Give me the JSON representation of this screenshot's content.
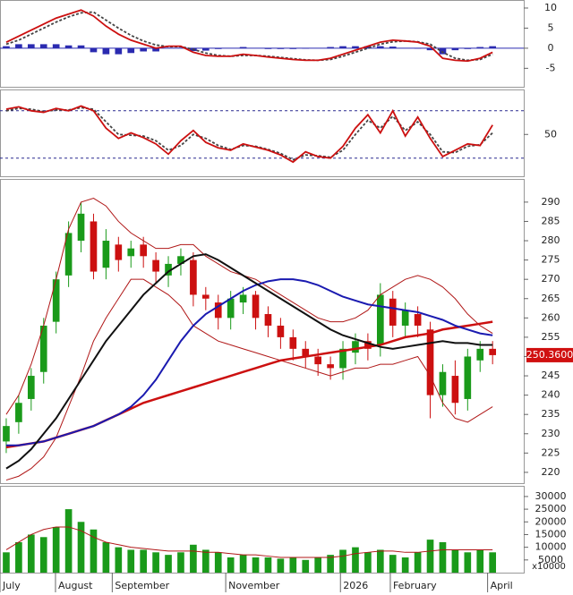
{
  "chart_data": [
    {
      "type": "line",
      "ylim": [
        -9.6,
        12
      ],
      "yticks": [
        10,
        5,
        0,
        -5
      ],
      "xlim": [
        0,
        42
      ],
      "zero_line": true,
      "series": [
        {
          "kind": "bar",
          "color": "#2a2ab0",
          "values": [
            0.5,
            1,
            1,
            1,
            1,
            0.7,
            0.7,
            -1,
            -1.5,
            -1.5,
            -1.2,
            -0.8,
            -0.8,
            0.1,
            0.1,
            -0.7,
            -0.6,
            -0.2,
            0,
            0.3,
            0,
            -0.2,
            -0.2,
            -0.2,
            -0.1,
            0,
            0.3,
            0.5,
            0.5,
            0.5,
            0.5,
            0.4,
            0,
            -0.1,
            -0.5,
            -1.5,
            -0.5,
            -0.2,
            0.3,
            0.5
          ]
        },
        {
          "kind": "line",
          "dash": true,
          "color": "#444",
          "values": [
            1,
            2,
            3.5,
            5,
            6.5,
            7.8,
            8.8,
            9,
            7,
            5,
            3.2,
            1.8,
            0.8,
            0.4,
            0.4,
            -0.3,
            -1.2,
            -1.8,
            -2,
            -1.8,
            -1.8,
            -2,
            -2.3,
            -2.6,
            -2.9,
            -3,
            -2.8,
            -2,
            -1,
            0,
            1,
            1.6,
            1.8,
            1.6,
            1,
            -1,
            -2.5,
            -3,
            -2.8,
            -1.5
          ]
        },
        {
          "kind": "line",
          "color": "#cc1010",
          "values": [
            1.5,
            3,
            4.5,
            6,
            7.5,
            8.5,
            9.5,
            8,
            5.5,
            3.5,
            2,
            1,
            0,
            0.5,
            0.5,
            -1,
            -1.8,
            -2,
            -2,
            -1.5,
            -1.8,
            -2.2,
            -2.5,
            -2.8,
            -3,
            -3,
            -2.5,
            -1.5,
            -0.5,
            0.5,
            1.5,
            2,
            1.8,
            1.5,
            0.5,
            -2.5,
            -3,
            -3.2,
            -2.5,
            -1
          ]
        }
      ]
    },
    {
      "type": "line",
      "ylim": [
        -3,
        107
      ],
      "yticks": [
        50
      ],
      "xlim": [
        0,
        42
      ],
      "levels": [
        80,
        20
      ],
      "series": [
        {
          "kind": "line",
          "dash": true,
          "color": "#444",
          "values": [
            80,
            83,
            82,
            79,
            81,
            81,
            84,
            82,
            66,
            50,
            49,
            48,
            42,
            30,
            36,
            50,
            45,
            36,
            31,
            36,
            35,
            31,
            26,
            18,
            24,
            23,
            21,
            30,
            50,
            68,
            58,
            73,
            55,
            66,
            50,
            28,
            27,
            35,
            37,
            52
          ]
        },
        {
          "kind": "line",
          "color": "#cc1010",
          "values": [
            82,
            85,
            80,
            78,
            83,
            80,
            86,
            80,
            58,
            45,
            52,
            46,
            38,
            25,
            42,
            55,
            40,
            33,
            30,
            38,
            34,
            30,
            24,
            15,
            28,
            22,
            20,
            35,
            58,
            75,
            52,
            80,
            48,
            72,
            45,
            22,
            30,
            38,
            36,
            62
          ]
        }
      ]
    },
    {
      "type": "candlestick",
      "ylim": [
        217.2,
        296
      ],
      "yticks": [
        220,
        225,
        230,
        235,
        240,
        245,
        250,
        255,
        260,
        265,
        270,
        275,
        280,
        285,
        290
      ],
      "xlim": [
        0,
        42
      ],
      "up_color": "#1a9a1a",
      "down_color": "#cc1010",
      "open": [
        228,
        233,
        239,
        246,
        259,
        271,
        280,
        285,
        273,
        279,
        276,
        279,
        275,
        271,
        274,
        275,
        266,
        264,
        260,
        264,
        266,
        261,
        258,
        255,
        252,
        250,
        248,
        247,
        251,
        254,
        253,
        265,
        258,
        261,
        257,
        240,
        245,
        239,
        249,
        252
      ],
      "high": [
        234,
        240,
        247,
        260,
        272,
        285,
        290,
        287,
        283,
        281,
        280,
        281,
        277,
        276,
        278,
        277,
        268,
        266,
        267,
        268,
        267,
        263,
        260,
        257,
        254,
        252,
        250,
        254,
        256,
        256,
        269,
        267,
        264,
        263,
        259,
        248,
        249,
        252,
        254,
        254
      ],
      "low": [
        225,
        230,
        236,
        243,
        256,
        268,
        277,
        270,
        270,
        272,
        273,
        273,
        269,
        268,
        271,
        263,
        262,
        257,
        257,
        261,
        257,
        255,
        252,
        249,
        247,
        245,
        244,
        244,
        248,
        249,
        250,
        255,
        255,
        255,
        234,
        237,
        235,
        236,
        246,
        248
      ],
      "close": [
        232,
        238,
        245,
        258,
        270,
        282,
        287,
        272,
        280,
        275,
        278,
        276,
        272,
        274,
        276,
        266,
        265,
        260,
        265,
        266,
        260,
        258,
        255,
        252,
        250,
        248,
        247,
        252,
        254,
        252,
        266,
        258,
        262,
        258,
        240,
        246,
        238,
        250,
        252,
        250.36
      ],
      "series": [
        {
          "kind": "line",
          "color": "#b01818",
          "width": 1,
          "values": [
            235,
            240,
            248,
            258,
            270,
            283,
            290,
            291,
            289,
            285,
            282,
            280,
            278,
            278,
            279,
            279,
            276,
            274,
            272,
            271,
            270,
            268,
            266,
            264,
            262,
            260,
            259,
            259,
            260,
            262,
            266,
            268,
            270,
            271,
            270,
            268,
            265,
            261,
            258,
            256
          ]
        },
        {
          "kind": "line",
          "color": "#b01818",
          "width": 1,
          "values": [
            218,
            219,
            221,
            224,
            229,
            237,
            245,
            254,
            260,
            265,
            270,
            270,
            268,
            266,
            263,
            258,
            256,
            254,
            253,
            252,
            251,
            250,
            249,
            248,
            247,
            246,
            245,
            246,
            247,
            247,
            248,
            248,
            249,
            250,
            245,
            238,
            234,
            233,
            235,
            237
          ]
        },
        {
          "kind": "line",
          "color": "#cc1010",
          "width": 2.5,
          "values": [
            226.5,
            227,
            227.5,
            228,
            229,
            230,
            231,
            232,
            233.5,
            235,
            236.5,
            238,
            239,
            240,
            241,
            242,
            243,
            244,
            245,
            246,
            247,
            248,
            249,
            249.5,
            250,
            250.5,
            251,
            251.5,
            252,
            252.5,
            253,
            254,
            255,
            255.5,
            256,
            257,
            257.5,
            258,
            258.5,
            259
          ]
        },
        {
          "kind": "line",
          "color": "#1a1ab0",
          "width": 2,
          "values": [
            227,
            227,
            227.5,
            228,
            229,
            230,
            231,
            232,
            233.5,
            235,
            237,
            240,
            244,
            249,
            254,
            258,
            261,
            263,
            265,
            267,
            268.5,
            269.5,
            270,
            270,
            269.5,
            268.5,
            267,
            265.5,
            264.5,
            263.5,
            263,
            262.5,
            262,
            261.5,
            260.5,
            259.5,
            258,
            257,
            256,
            255.5
          ]
        },
        {
          "kind": "line",
          "color": "#111",
          "width": 2,
          "values": [
            221,
            223,
            226,
            230,
            234,
            239,
            244,
            249,
            254,
            258,
            262,
            266,
            269,
            272,
            274,
            276,
            276.5,
            275,
            273,
            271,
            269,
            267,
            265,
            263,
            261,
            259,
            257,
            255.5,
            254.5,
            253.5,
            252.5,
            252,
            252.5,
            253,
            253.5,
            254,
            253.5,
            253.5,
            253,
            253
          ]
        }
      ],
      "last_price": {
        "value": 250.36,
        "label": "250.3600"
      }
    },
    {
      "type": "bar",
      "ylim": [
        0,
        34200
      ],
      "yticks": [
        5000,
        10000,
        15000,
        20000,
        25000,
        30000
      ],
      "xlim": [
        0,
        42
      ],
      "color": "#1a9a1a",
      "values": [
        8000,
        12000,
        15000,
        14000,
        18000,
        25000,
        20000,
        17000,
        12000,
        10000,
        9000,
        9000,
        8000,
        7000,
        8000,
        11000,
        9000,
        8000,
        6000,
        7000,
        6000,
        6000,
        5500,
        6000,
        5000,
        6000,
        7000,
        9000,
        10000,
        8000,
        9000,
        7000,
        6000,
        8000,
        13000,
        12000,
        9000,
        8000,
        9000,
        8000
      ],
      "series": [
        {
          "kind": "line",
          "color": "#b01818",
          "width": 1,
          "values": [
            9000,
            12000,
            15000,
            17000,
            18000,
            18000,
            16500,
            14000,
            12000,
            11000,
            10000,
            9500,
            9000,
            8500,
            8500,
            8500,
            8000,
            8000,
            7500,
            7000,
            7000,
            6500,
            6000,
            6000,
            6000,
            6000,
            6000,
            6500,
            7500,
            8000,
            8500,
            8500,
            8000,
            8000,
            8500,
            9000,
            9000,
            9000,
            9000,
            9000
          ]
        }
      ],
      "unit_label": "x10000",
      "xticks": [
        {
          "value": 0,
          "label": "July"
        },
        {
          "value": 4.45,
          "label": "August"
        },
        {
          "value": 9,
          "label": "September"
        },
        {
          "value": 18.1,
          "label": "November"
        },
        {
          "value": 27.3,
          "label": "2026"
        },
        {
          "value": 31.3,
          "label": "February"
        },
        {
          "value": 39.1,
          "label": "April"
        }
      ]
    }
  ]
}
